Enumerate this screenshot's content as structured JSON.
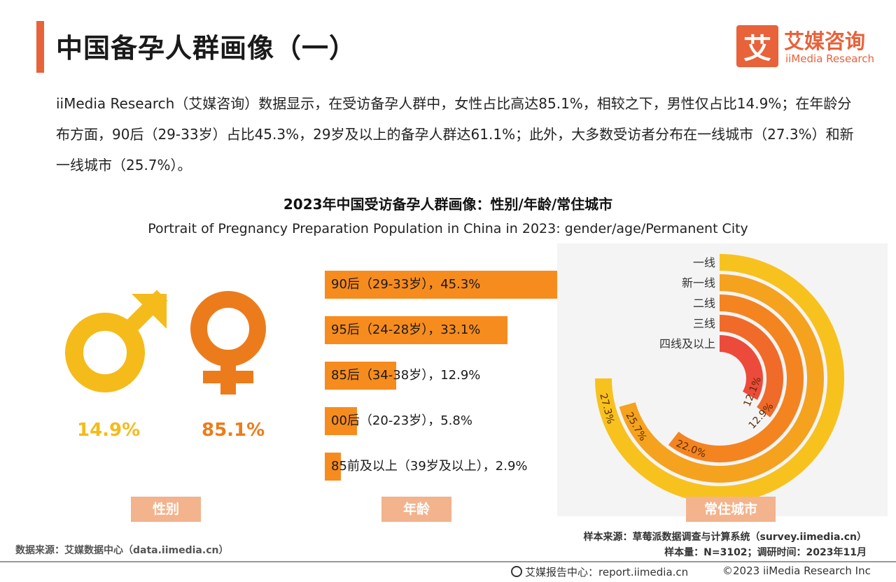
{
  "header": {
    "title": "中国备孕人群画像（一）",
    "logo_mark": "艾",
    "logo_cn": "艾媒咨询",
    "logo_en": "iiMedia Research"
  },
  "intro_text": "iiMedia Research（艾媒咨询）数据显示，在受访备孕人群中，女性占比高达85.1%，相较之下，男性仅占比14.9%；在年龄分布方面，90后（29-33岁）占比45.3%，29岁及以上的备孕人群达61.1%；此外，大多数受访者分布在一线城市（27.3%）和新一线城市（25.7%）。",
  "chart_title": "2023年中国受访备孕人群画像：性别/年龄/常住城市",
  "chart_subtitle": "Portrait of Pregnancy Preparation Population in China in 2023: gender/age/Permanent City",
  "colors": {
    "accent": "#e8623a",
    "male": "#f5bb1a",
    "female": "#ec7c1b",
    "bar": "#f68c1e",
    "tag": "#f3b38c"
  },
  "chart_data": [
    {
      "type": "pie",
      "categories": [
        "男性",
        "女性"
      ],
      "values": [
        14.9,
        85.1
      ],
      "labels": [
        "14.9%",
        "85.1%"
      ],
      "icons": [
        "male-symbol-icon",
        "female-symbol-icon"
      ]
    },
    {
      "type": "bar",
      "orientation": "horizontal",
      "categories": [
        "90后（29-33岁）",
        "95后（24-28岁）",
        "85后（34-38岁）",
        "00后（20-23岁）",
        "85前及以上（39岁及以上）"
      ],
      "values": [
        45.3,
        33.1,
        12.9,
        5.8,
        2.9
      ],
      "labels": [
        "90后（29-33岁），45.3%",
        "95后（24-28岁），33.1%",
        "85后（34-38岁），12.9%",
        "00后（20-23岁），5.8%",
        "85前及以上（39岁及以上），2.9%"
      ]
    },
    {
      "type": "radial-bar",
      "categories": [
        "一线",
        "新一线",
        "二线",
        "三线",
        "四线及以上"
      ],
      "values": [
        27.3,
        25.7,
        22.0,
        12.9,
        12.1
      ],
      "labels": [
        "27.3%",
        "25.7%",
        "22.0%",
        "12.9%",
        "12.1%"
      ],
      "series_colors": [
        "#f7c21e",
        "#f5a21e",
        "#f48420",
        "#f06a2a",
        "#ec4a3a"
      ]
    }
  ],
  "tags": {
    "gender": "性别",
    "age": "年龄",
    "city": "常住城市"
  },
  "footer": {
    "data_source": "数据来源：艾媒数据中心（data.iimedia.cn）",
    "sample_source": "样本来源：草莓派数据调查与计算系统（survey.iimedia.cn）",
    "sample_size": "样本量：N=3102；调研时间：2023年11月",
    "report": "艾媒报告中心：report.iimedia.cn",
    "copyright": "©2023  iiMedia Research  Inc"
  }
}
